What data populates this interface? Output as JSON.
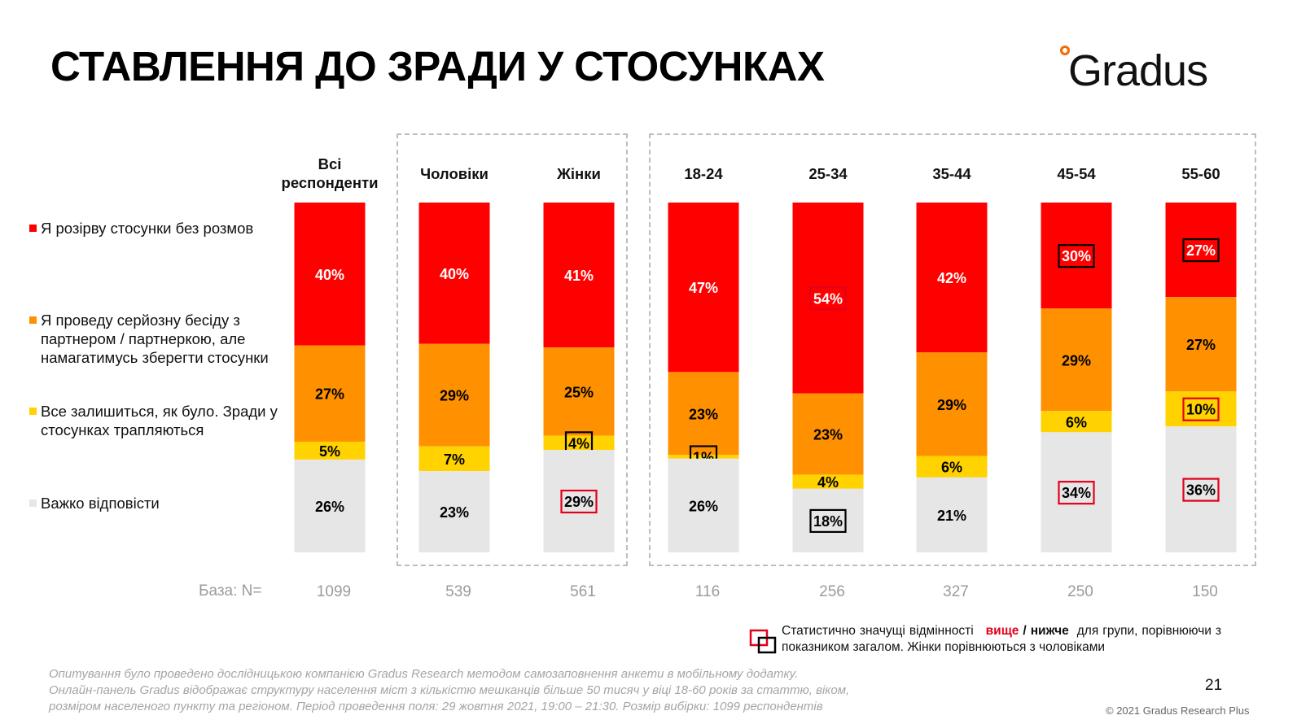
{
  "title": "СТАВЛЕННЯ ДО ЗРАДИ У СТОСУНКАХ",
  "logo_text": "Gradus",
  "legend": [
    {
      "label": "Я розірву стосунки без розмов",
      "color": "#ff0000"
    },
    {
      "label": "Я проведу серйозну бесіду з партнером / партнеркою, але намагатимусь зберегти стосунки",
      "color": "#ff9100"
    },
    {
      "label": "Все залишиться, як було. Зради у стосунках трапляються",
      "color": "#ffd200"
    },
    {
      "label": "Важко відповісти",
      "color": "#e7e6e6"
    }
  ],
  "base_label": "База: N=",
  "chart_data": {
    "type": "bar",
    "stacked": true,
    "percent_scale": true,
    "categories": [
      "Всі респонденти",
      "Чоловіки",
      "Жінки",
      "18-24",
      "25-34",
      "35-44",
      "45-54",
      "55-60"
    ],
    "bases": [
      "1099",
      "539",
      "561",
      "116",
      "256",
      "327",
      "250",
      "150"
    ],
    "series": [
      {
        "name": "Я розірву стосунки без розмов",
        "color": "#ff0000",
        "values": [
          40,
          40,
          41,
          47,
          54,
          42,
          30,
          27
        ],
        "labels": [
          "40%",
          "40%",
          "41%",
          "47%",
          "54%",
          "42%",
          "30%",
          "27%"
        ],
        "marks": [
          "",
          "",
          "",
          "",
          "higher",
          "",
          "lower",
          "lower"
        ]
      },
      {
        "name": "Я проведу серйозну бесіду з партнером / партнеркою, але намагатимусь зберегти стосунки",
        "color": "#ff9100",
        "values": [
          27,
          29,
          25,
          23,
          23,
          29,
          29,
          27
        ],
        "labels": [
          "27%",
          "29%",
          "25%",
          "23%",
          "23%",
          "29%",
          "29%",
          "27%"
        ],
        "marks": [
          "",
          "",
          "",
          "",
          "",
          "",
          "",
          ""
        ]
      },
      {
        "name": "Все залишиться, як було. Зради у стосунках трапляються",
        "color": "#ffd200",
        "values": [
          5,
          7,
          4,
          1,
          4,
          6,
          6,
          10
        ],
        "labels": [
          "5%",
          "7%",
          "4%",
          "1%",
          "4%",
          "6%",
          "6%",
          "10%"
        ],
        "marks": [
          "",
          "",
          "lower",
          "lower",
          "",
          "",
          "",
          "higher"
        ]
      },
      {
        "name": "Важко відповісти",
        "color": "#e7e6e6",
        "values": [
          26,
          23,
          29,
          26,
          18,
          21,
          34,
          36
        ],
        "labels": [
          "26%",
          "23%",
          "29%",
          "26%",
          "18%",
          "21%",
          "34%",
          "36%"
        ],
        "marks": [
          "",
          "",
          "higher",
          "",
          "lower",
          "",
          "higher",
          "higher"
        ]
      }
    ],
    "mark_colors": {
      "higher": "#e3001b",
      "lower": "#000000"
    }
  },
  "note": {
    "text1": "Статистично значущі відмінності",
    "higher_word": "вище",
    "slash": " / ",
    "lower_word": "нижче",
    "text2": "для групи, порівнюючи з показником загалом. Жінки порівнюються з чоловіками"
  },
  "footer": {
    "line1": "Опитування було проведено дослідницькою компанією Gradus Research методом самозаповнення анкети в мобільному додатку.",
    "line2": "Онлайн-панель Gradus відображає структуру населення міст з кількістю мешканців більше 50 тисяч у віці 18-60 років за статтю, віком,",
    "line3": "розміром населеного пункту та регіоном. Період проведення поля: 29 жовтня 2021, 19:00 – 21:30. Розмір вибірки: 1099 респондентів"
  },
  "page_number": "21",
  "copyright": "© 2021 Gradus Research Plus"
}
